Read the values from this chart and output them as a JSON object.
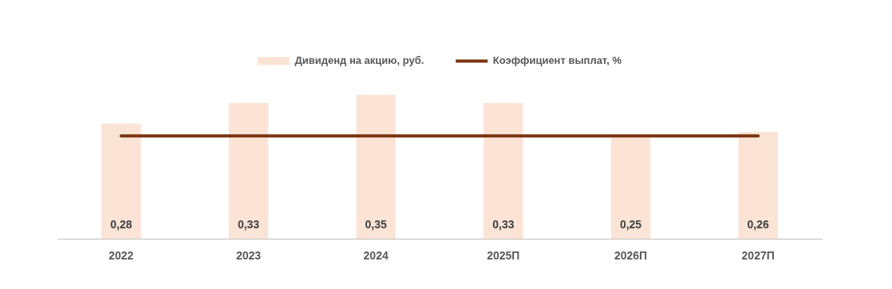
{
  "chart_data": {
    "type": "bar",
    "categories": [
      "2022",
      "2023",
      "2024",
      "2025П",
      "2026П",
      "2027П"
    ],
    "tick_labels": "x",
    "grid": false,
    "legend": "top",
    "marker": "none",
    "line_style": "solid",
    "series": [
      {
        "name": "Дивиденд на акцию, руб.",
        "color": "#fbe4d6",
        "values": [
          0.28,
          0.33,
          0.35,
          0.33,
          0.25,
          0.26
        ],
        "value_labels": [
          "0,28",
          "0,33",
          "0,35",
          "0,33",
          "0,25",
          "0,26"
        ]
      },
      {
        "name": "Коэффициент выплат, %",
        "type": "line",
        "color": "#7b3510",
        "values": [
          0.25,
          0.25,
          0.25,
          0.25,
          0.25,
          0.25
        ]
      }
    ]
  }
}
